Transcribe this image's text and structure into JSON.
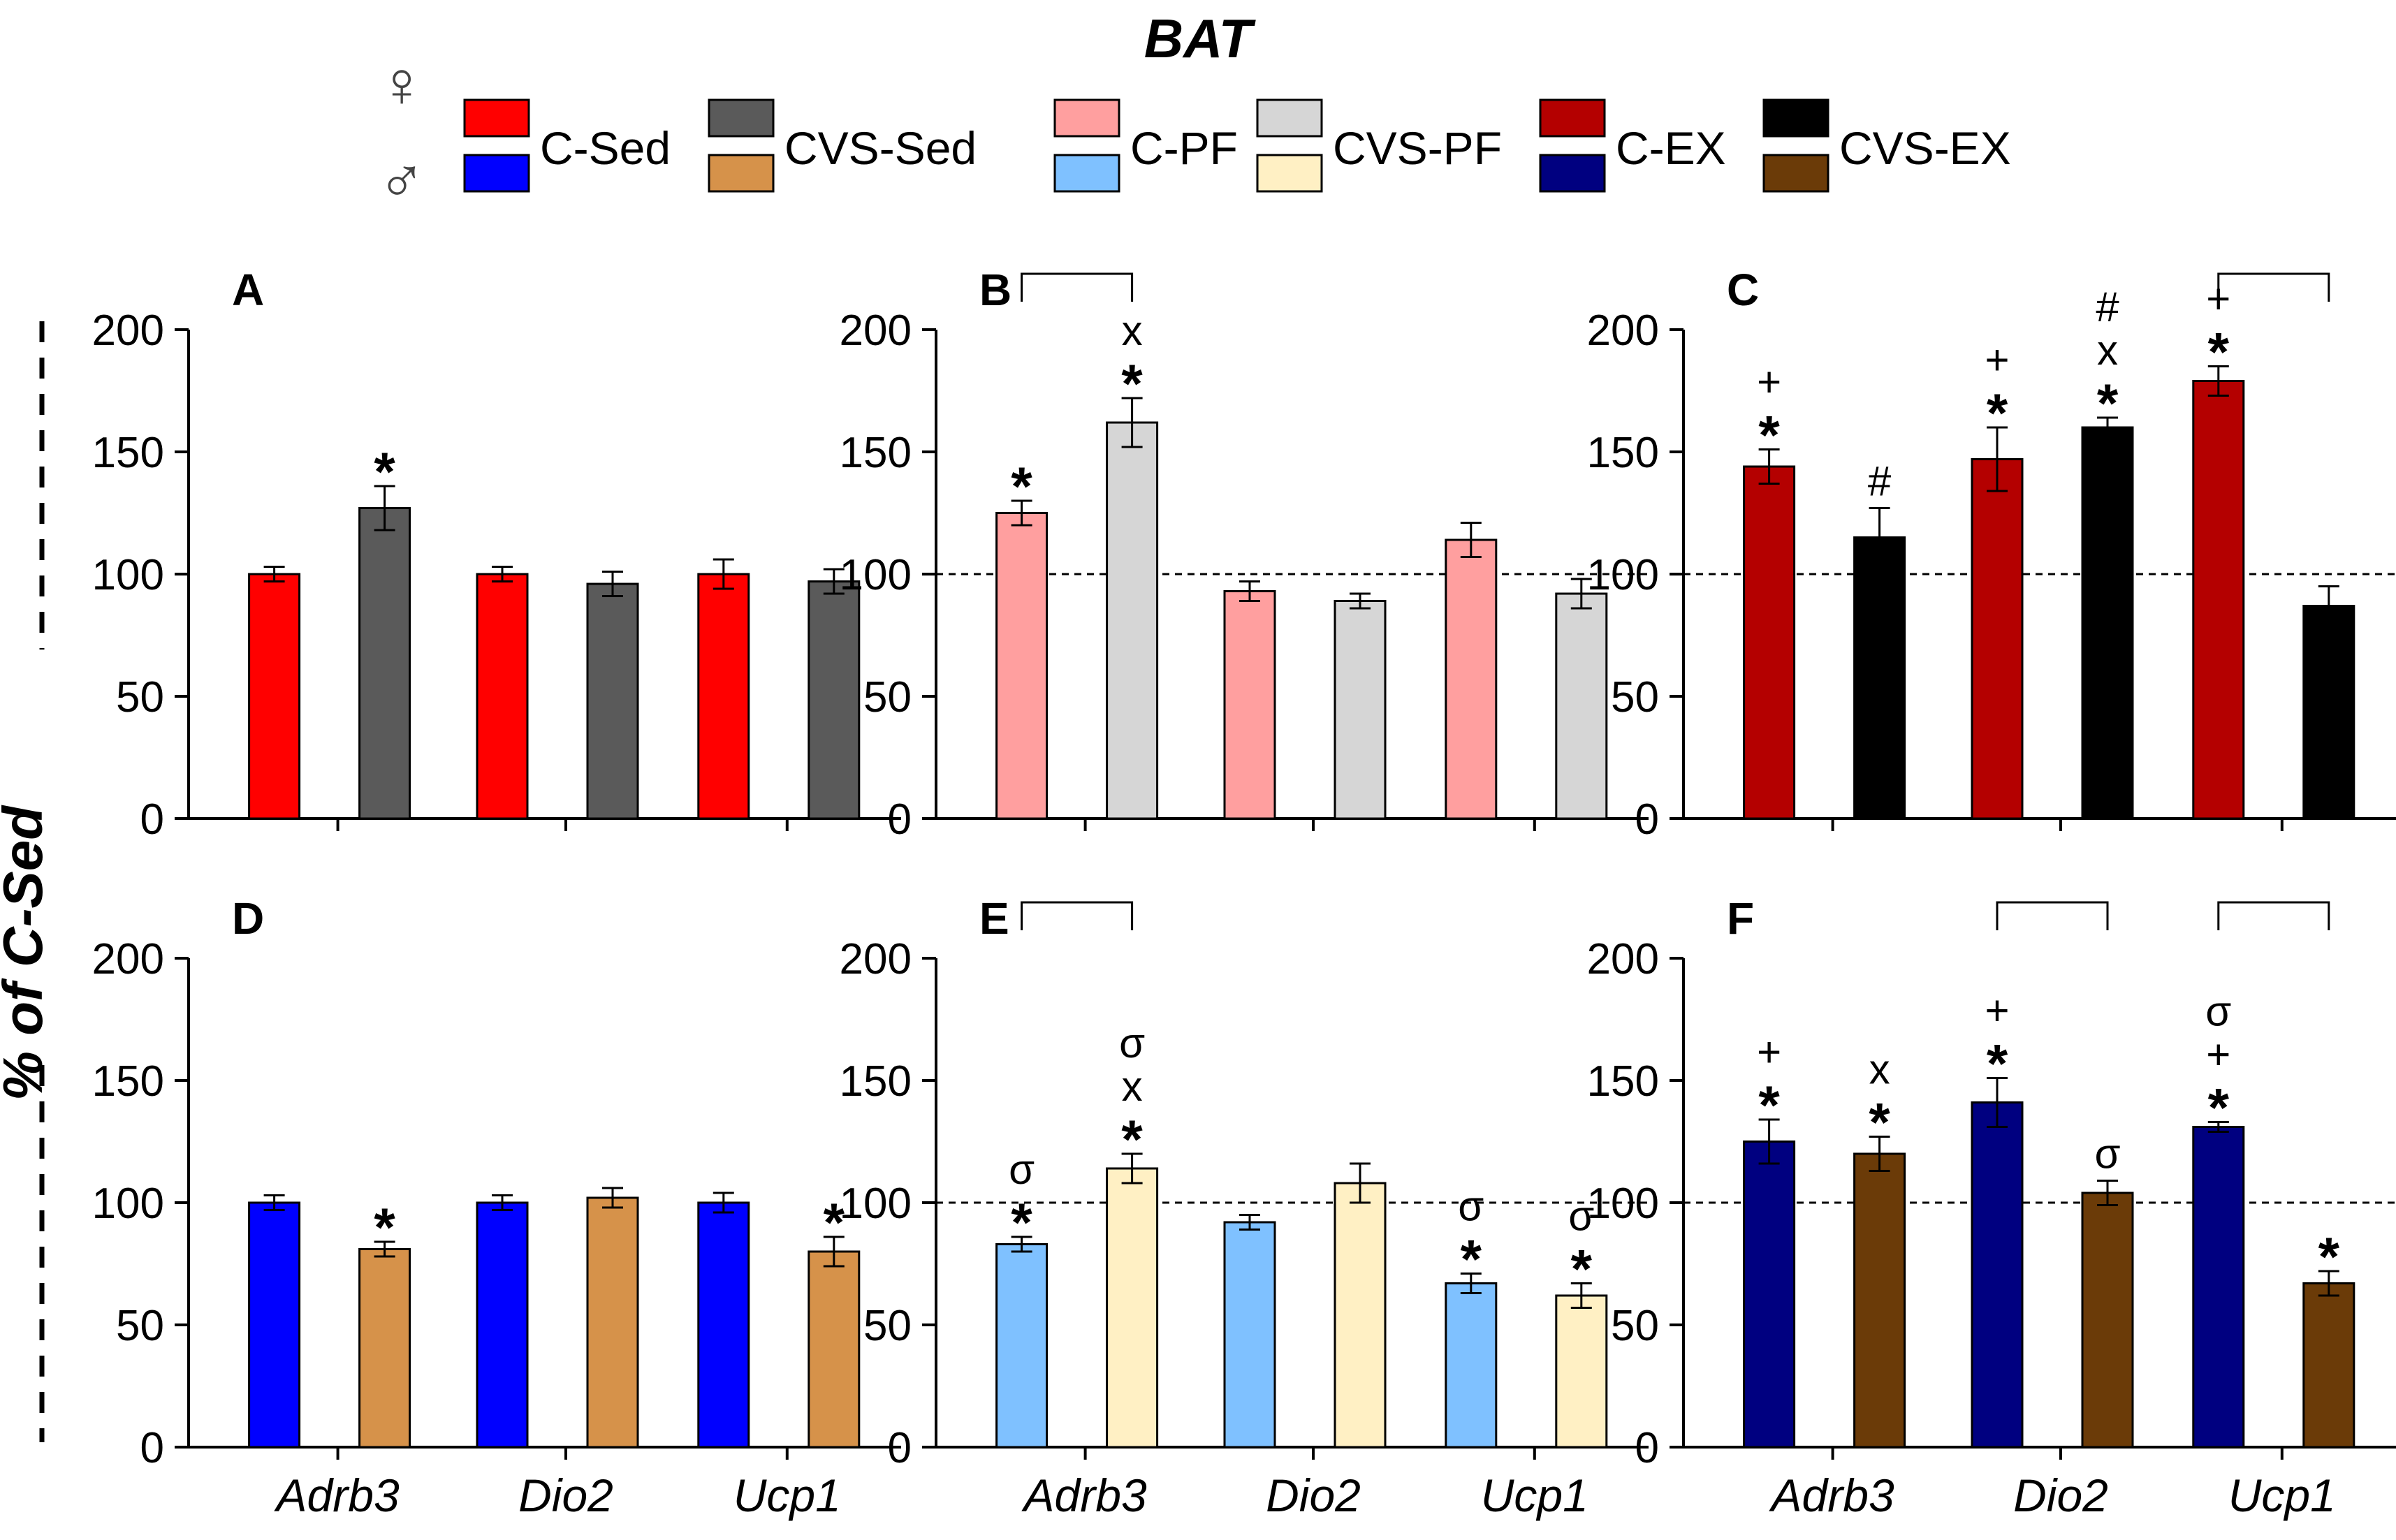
{
  "figure_title": "BAT",
  "ylabel_global": "% of C-Sed",
  "sex_symbols": {
    "female": "♀",
    "male": "♂"
  },
  "legend": [
    {
      "label": "C-Sed",
      "female_color": "#ff0000",
      "male_color": "#0000ff"
    },
    {
      "label": "CVS-Sed",
      "female_color": "#5a5a5a",
      "male_color": "#d6924a"
    },
    {
      "label": "C-PF",
      "female_color": "#ff9f9f",
      "male_color": "#7fc1ff"
    },
    {
      "label": "CVS-PF",
      "female_color": "#d6d6d6",
      "male_color": "#fff0c4"
    },
    {
      "label": "C-EX",
      "female_color": "#b40000",
      "male_color": "#000080"
    },
    {
      "label": "CVS-EX",
      "female_color": "#000000",
      "male_color": "#6b3b08"
    }
  ],
  "chart_data": [
    {
      "panel": "A",
      "type": "bar",
      "categories": [
        "Adrb3",
        "Dio2",
        "Ucp1"
      ],
      "ylim": [
        0,
        200
      ],
      "yticks": [
        "0",
        "50",
        "100",
        "150",
        "200"
      ],
      "reference_line": null,
      "series": [
        {
          "name": "C-Sed",
          "color": "#ff0000",
          "values": [
            100,
            100,
            100
          ],
          "errors": [
            3,
            3,
            6
          ],
          "annotations": [
            [],
            [],
            []
          ]
        },
        {
          "name": "CVS-Sed",
          "color": "#5a5a5a",
          "values": [
            127,
            96,
            97
          ],
          "errors": [
            9,
            5,
            5
          ],
          "annotations": [
            [
              "*"
            ],
            [],
            []
          ]
        }
      ],
      "brackets": []
    },
    {
      "panel": "B",
      "type": "bar",
      "categories": [
        "Adrb3",
        "Dio2",
        "Ucp1"
      ],
      "ylim": [
        0,
        200
      ],
      "yticks": [
        "0",
        "50",
        "100",
        "150",
        "200"
      ],
      "reference_line": 100,
      "series": [
        {
          "name": "C-PF",
          "color": "#ff9f9f",
          "values": [
            125,
            93,
            114
          ],
          "errors": [
            5,
            4,
            7
          ],
          "annotations": [
            [
              "*"
            ],
            [],
            []
          ]
        },
        {
          "name": "CVS-PF",
          "color": "#d6d6d6",
          "values": [
            162,
            89,
            92
          ],
          "errors": [
            10,
            3,
            6
          ],
          "annotations": [
            [
              "*",
              "x"
            ],
            [],
            []
          ]
        }
      ],
      "brackets": [
        0
      ]
    },
    {
      "panel": "C",
      "type": "bar",
      "categories": [
        "Adrb3",
        "Dio2",
        "Ucp1"
      ],
      "ylim": [
        0,
        200
      ],
      "yticks": [
        "0",
        "50",
        "100",
        "150",
        "200"
      ],
      "reference_line": 100,
      "series": [
        {
          "name": "C-EX",
          "color": "#b40000",
          "values": [
            144,
            147,
            179
          ],
          "errors": [
            7,
            13,
            6
          ],
          "annotations": [
            [
              "*",
              "+"
            ],
            [
              "*",
              "+"
            ],
            [
              "*",
              "+"
            ]
          ]
        },
        {
          "name": "CVS-EX",
          "color": "#000000",
          "values": [
            115,
            160,
            87
          ],
          "errors": [
            12,
            4,
            8
          ],
          "annotations": [
            [
              "#"
            ],
            [
              "*",
              "x",
              "#"
            ],
            []
          ]
        }
      ],
      "brackets": [
        2
      ]
    },
    {
      "panel": "D",
      "type": "bar",
      "categories": [
        "Adrb3",
        "Dio2",
        "Ucp1"
      ],
      "ylim": [
        0,
        200
      ],
      "yticks": [
        "0",
        "50",
        "100",
        "150",
        "200"
      ],
      "reference_line": null,
      "series": [
        {
          "name": "C-Sed",
          "color": "#0000ff",
          "values": [
            100,
            100,
            100
          ],
          "errors": [
            3,
            3,
            4
          ],
          "annotations": [
            [],
            [],
            []
          ]
        },
        {
          "name": "CVS-Sed",
          "color": "#d6924a",
          "values": [
            81,
            102,
            80
          ],
          "errors": [
            3,
            4,
            6
          ],
          "annotations": [
            [
              "*"
            ],
            [],
            [
              "*"
            ]
          ]
        }
      ],
      "brackets": []
    },
    {
      "panel": "E",
      "type": "bar",
      "categories": [
        "Adrb3",
        "Dio2",
        "Ucp1"
      ],
      "ylim": [
        0,
        200
      ],
      "yticks": [
        "0",
        "50",
        "100",
        "150",
        "200"
      ],
      "reference_line": 100,
      "series": [
        {
          "name": "C-PF",
          "color": "#7fc1ff",
          "values": [
            83,
            92,
            67
          ],
          "errors": [
            3,
            3,
            4
          ],
          "annotations": [
            [
              "*",
              "σ"
            ],
            [],
            [
              "*",
              "σ"
            ]
          ]
        },
        {
          "name": "CVS-PF",
          "color": "#fff0c4",
          "values": [
            114,
            108,
            62
          ],
          "errors": [
            6,
            8,
            5
          ],
          "annotations": [
            [
              "*",
              "x",
              "σ"
            ],
            [],
            [
              "*",
              "σ"
            ]
          ]
        }
      ],
      "brackets": [
        0
      ]
    },
    {
      "panel": "F",
      "type": "bar",
      "categories": [
        "Adrb3",
        "Dio2",
        "Ucp1"
      ],
      "ylim": [
        0,
        200
      ],
      "yticks": [
        "0",
        "50",
        "100",
        "150",
        "200"
      ],
      "reference_line": 100,
      "series": [
        {
          "name": "C-EX",
          "color": "#000080",
          "values": [
            125,
            141,
            131
          ],
          "errors": [
            9,
            10,
            2
          ],
          "annotations": [
            [
              "*",
              "+"
            ],
            [
              "*",
              "+"
            ],
            [
              "*",
              "+",
              "σ"
            ]
          ]
        },
        {
          "name": "CVS-EX",
          "color": "#6b3b08",
          "values": [
            120,
            104,
            67
          ],
          "errors": [
            7,
            5,
            5
          ],
          "annotations": [
            [
              "*",
              "x"
            ],
            [
              "σ"
            ],
            [
              "*"
            ]
          ]
        }
      ],
      "brackets": [
        1,
        2
      ]
    }
  ]
}
